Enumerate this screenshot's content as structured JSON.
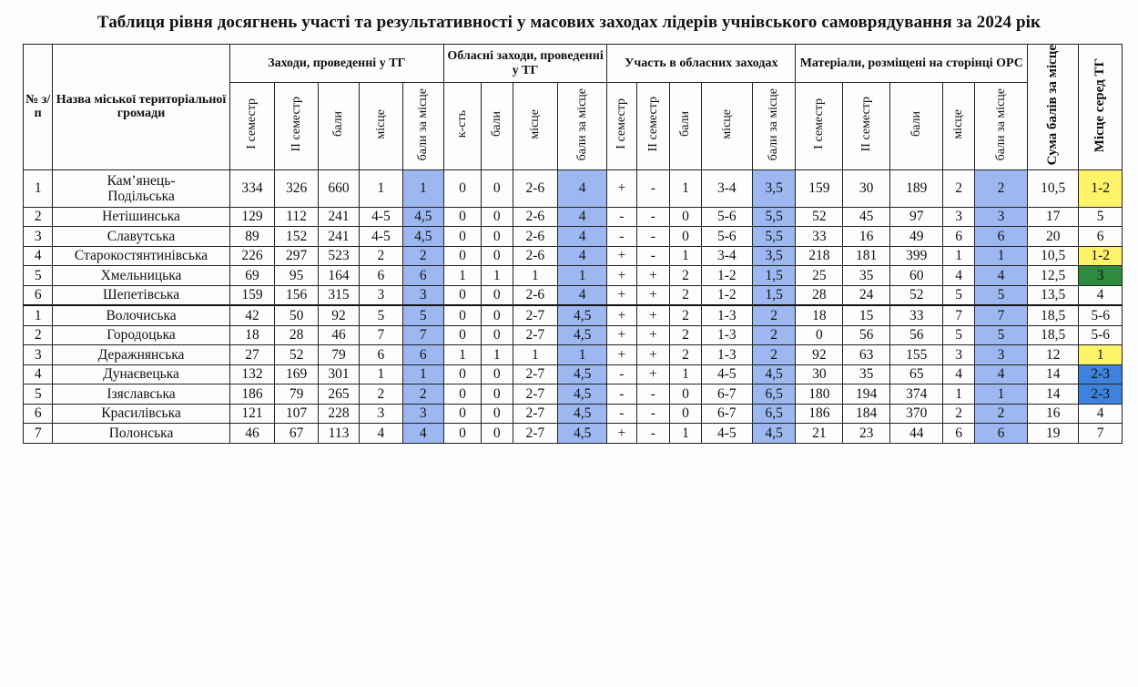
{
  "title": "Таблиця рівня досягнень участі та результативності у масових заходах лідерів учнівського самоврядування за 2024 рік",
  "headers": {
    "num": "№ з/п",
    "name": "Назва міської територіальної громади",
    "g1": "Заходи, проведенні у ТГ",
    "g2": "Обласні заходи, проведенні у ТГ",
    "g3": "Участь в обласних заходах",
    "g4": "Матеріали, розміщені на сторінці ОРС",
    "total": "Сума балів за місце",
    "rank": "Місце серед ТГ",
    "sub": [
      "I семестр",
      "II семестр",
      "бали",
      "місце",
      "бали за місце",
      "к-сть",
      "бали",
      "місце",
      "бали за місце",
      "I семестр",
      "II семестр",
      "бали",
      "місце",
      "бали за місце",
      "I семестр",
      "II семестр",
      "бали",
      "місце",
      "бали за місце"
    ]
  },
  "rows": [
    {
      "n": "1",
      "name": "Кам’янець-Подільська",
      "c": [
        "334",
        "326",
        "660",
        "1",
        "1",
        "0",
        "0",
        "2-6",
        "4",
        "+",
        "-",
        "1",
        "3-4",
        "3,5",
        "159",
        "30",
        "189",
        "2",
        "2",
        "10,5",
        "1-2"
      ],
      "rank_color": "yellow"
    },
    {
      "n": "2",
      "name": "Нетішинська",
      "c": [
        "129",
        "112",
        "241",
        "4-5",
        "4,5",
        "0",
        "0",
        "2-6",
        "4",
        "-",
        "-",
        "0",
        "5-6",
        "5,5",
        "52",
        "45",
        "97",
        "3",
        "3",
        "17",
        "5"
      ],
      "rank_color": ""
    },
    {
      "n": "3",
      "name": "Славутська",
      "c": [
        "89",
        "152",
        "241",
        "4-5",
        "4,5",
        "0",
        "0",
        "2-6",
        "4",
        "-",
        "-",
        "0",
        "5-6",
        "5,5",
        "33",
        "16",
        "49",
        "6",
        "6",
        "20",
        "6"
      ],
      "rank_color": ""
    },
    {
      "n": "4",
      "name": "Старокостянтинівська",
      "c": [
        "226",
        "297",
        "523",
        "2",
        "2",
        "0",
        "0",
        "2-6",
        "4",
        "+",
        "-",
        "1",
        "3-4",
        "3,5",
        "218",
        "181",
        "399",
        "1",
        "1",
        "10,5",
        "1-2"
      ],
      "rank_color": "yellow"
    },
    {
      "n": "5",
      "name": "Хмельницька",
      "c": [
        "69",
        "95",
        "164",
        "6",
        "6",
        "1",
        "1",
        "1",
        "1",
        "+",
        "+",
        "2",
        "1-2",
        "1,5",
        "25",
        "35",
        "60",
        "4",
        "4",
        "12,5",
        "3"
      ],
      "rank_color": "green"
    },
    {
      "n": "6",
      "name": "Шепетівська",
      "c": [
        "159",
        "156",
        "315",
        "3",
        "3",
        "0",
        "0",
        "2-6",
        "4",
        "+",
        "+",
        "2",
        "1-2",
        "1,5",
        "28",
        "24",
        "52",
        "5",
        "5",
        "13,5",
        "4"
      ],
      "rank_color": ""
    },
    {
      "n": "1",
      "name": "Волочиська",
      "c": [
        "42",
        "50",
        "92",
        "5",
        "5",
        "0",
        "0",
        "2-7",
        "4,5",
        "+",
        "+",
        "2",
        "1-3",
        "2",
        "18",
        "15",
        "33",
        "7",
        "7",
        "18,5",
        "5-6"
      ],
      "rank_color": ""
    },
    {
      "n": "2",
      "name": "Городоцька",
      "c": [
        "18",
        "28",
        "46",
        "7",
        "7",
        "0",
        "0",
        "2-7",
        "4,5",
        "+",
        "+",
        "2",
        "1-3",
        "2",
        "0",
        "56",
        "56",
        "5",
        "5",
        "18,5",
        "5-6"
      ],
      "rank_color": ""
    },
    {
      "n": "3",
      "name": "Деражнянська",
      "c": [
        "27",
        "52",
        "79",
        "6",
        "6",
        "1",
        "1",
        "1",
        "1",
        "+",
        "+",
        "2",
        "1-3",
        "2",
        "92",
        "63",
        "155",
        "3",
        "3",
        "12",
        "1"
      ],
      "rank_color": "yellow"
    },
    {
      "n": "4",
      "name": "Дунаєвецька",
      "c": [
        "132",
        "169",
        "301",
        "1",
        "1",
        "0",
        "0",
        "2-7",
        "4,5",
        "-",
        "+",
        "1",
        "4-5",
        "4,5",
        "30",
        "35",
        "65",
        "4",
        "4",
        "14",
        "2-3"
      ],
      "rank_color": "dblue"
    },
    {
      "n": "5",
      "name": "Ізяславська",
      "c": [
        "186",
        "79",
        "265",
        "2",
        "2",
        "0",
        "0",
        "2-7",
        "4,5",
        "-",
        "-",
        "0",
        "6-7",
        "6,5",
        "180",
        "194",
        "374",
        "1",
        "1",
        "14",
        "2-3"
      ],
      "rank_color": "dblue"
    },
    {
      "n": "6",
      "name": "Красилівська",
      "c": [
        "121",
        "107",
        "228",
        "3",
        "3",
        "0",
        "0",
        "2-7",
        "4,5",
        "-",
        "-",
        "0",
        "6-7",
        "6,5",
        "186",
        "184",
        "370",
        "2",
        "2",
        "16",
        "4"
      ],
      "rank_color": ""
    },
    {
      "n": "7",
      "name": "Полонська",
      "c": [
        "46",
        "67",
        "113",
        "4",
        "4",
        "0",
        "0",
        "2-7",
        "4,5",
        "+",
        "-",
        "1",
        "4-5",
        "4,5",
        "21",
        "23",
        "44",
        "6",
        "6",
        "19",
        "7"
      ],
      "rank_color": ""
    }
  ]
}
